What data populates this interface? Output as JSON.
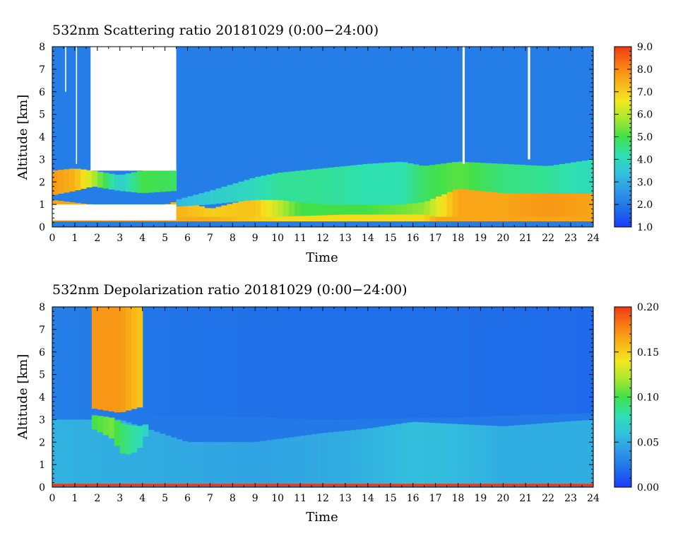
{
  "colors": {
    "scale": [
      "#1a3cff",
      "#1f6fe8",
      "#2f98e6",
      "#33c3dc",
      "#2ee0b0",
      "#42e048",
      "#a8e830",
      "#f4e81e",
      "#f8b418",
      "#f87a14",
      "#ee3a14"
    ],
    "missing": "#ffffff"
  },
  "chart_data": [
    {
      "type": "heatmap",
      "title": "532nm Scattering ratio  20181029 (0:00−24:00)",
      "xlabel": "Time",
      "ylabel": "Altitude [km]",
      "xlim": [
        0,
        24
      ],
      "ylim": [
        0,
        8
      ],
      "xticks": [
        "0",
        "1",
        "2",
        "3",
        "4",
        "5",
        "6",
        "7",
        "8",
        "9",
        "10",
        "11",
        "12",
        "13",
        "14",
        "15",
        "16",
        "17",
        "18",
        "19",
        "20",
        "21",
        "22",
        "23",
        "24"
      ],
      "yticks": [
        "0",
        "1",
        "2",
        "3",
        "4",
        "5",
        "6",
        "7",
        "8"
      ],
      "colorbar": {
        "range": [
          1.0,
          9.0
        ],
        "ticks": [
          "1.0",
          "2.0",
          "3.0",
          "4.0",
          "5.0",
          "6.0",
          "7.0",
          "8.0",
          "9.0"
        ]
      },
      "background_value": 2.1,
      "layers": [
        {
          "name": "boundary-layer",
          "x": [
            0,
            1.7,
            3.5,
            5.7,
            7,
            9,
            11,
            14,
            16.5,
            18,
            20,
            22,
            24
          ],
          "bottom": [
            0.25,
            0.25,
            0.25,
            0.25,
            0.25,
            0.25,
            0.25,
            0.25,
            0.25,
            0.25,
            0.25,
            0.25,
            0.25
          ],
          "top": [
            1.2,
            1.0,
            0.5,
            1.2,
            0.8,
            1.3,
            1.3,
            1.3,
            1.3,
            1.9,
            1.8,
            1.5,
            1.5
          ],
          "value": [
            7.6,
            7.6,
            7.4,
            7.4,
            7.0,
            7.2,
            5.0,
            5.0,
            5.6,
            7.6,
            7.6,
            7.8,
            7.6
          ]
        },
        {
          "name": "surface-layer",
          "x": [
            0,
            7,
            10,
            13,
            16.5,
            17,
            24
          ],
          "bottom": [
            0.25,
            0.25,
            0.25,
            0.25,
            0.25,
            0.25,
            0.25
          ],
          "top": [
            0.45,
            0.45,
            0.45,
            0.55,
            0.55,
            0.45,
            0.45
          ],
          "value": [
            7.5,
            7.5,
            6.8,
            6.8,
            6.8,
            7.6,
            7.6
          ]
        },
        {
          "name": "aerosol-layer",
          "x": [
            5.5,
            7,
            9,
            10,
            12,
            14,
            15.5,
            16.5,
            18,
            20,
            22,
            24
          ],
          "bottom": [
            0.9,
            1.0,
            1.2,
            1.2,
            1.0,
            1.0,
            1.0,
            1.1,
            1.7,
            1.5,
            1.5,
            1.5
          ],
          "top": [
            1.2,
            1.6,
            2.2,
            2.4,
            2.6,
            2.8,
            2.9,
            2.7,
            2.9,
            2.8,
            2.7,
            3.0
          ],
          "value": [
            3.2,
            3.6,
            4.0,
            4.4,
            4.4,
            4.2,
            4.2,
            4.8,
            5.2,
            4.6,
            4.4,
            4.0
          ]
        },
        {
          "name": "early-cloud-layer",
          "x": [
            0,
            1,
            1.8,
            3,
            4,
            5.5
          ],
          "bottom": [
            1.4,
            1.6,
            1.8,
            1.6,
            1.5,
            1.6
          ],
          "top": [
            2.5,
            2.6,
            2.5,
            2.3,
            2.5,
            2.6
          ],
          "value": [
            7.8,
            7.4,
            6.0,
            3.6,
            5.0,
            4.8
          ]
        }
      ],
      "missing_regions": [
        {
          "x": [
            1.7,
            5.5
          ],
          "y": [
            2.5,
            8.0
          ]
        },
        {
          "x": [
            0.0,
            5.5
          ],
          "y": [
            0.3,
            1.0
          ]
        },
        {
          "x": [
            0.57,
            0.62
          ],
          "y": [
            6.0,
            8.0
          ]
        },
        {
          "x": [
            1.05,
            1.1
          ],
          "y": [
            2.8,
            8.0
          ]
        },
        {
          "x": [
            18.2,
            18.3
          ],
          "y": [
            2.8,
            8.0
          ]
        },
        {
          "x": [
            21.1,
            21.2
          ],
          "y": [
            3.0,
            8.0
          ]
        }
      ]
    },
    {
      "type": "heatmap",
      "title": "532nm Depolarization ratio  20181029 (0:00−24:00)",
      "xlabel": "Time",
      "ylabel": "Altitude [km]",
      "xlim": [
        0,
        24
      ],
      "ylim": [
        0,
        8
      ],
      "xticks": [
        "0",
        "1",
        "2",
        "3",
        "4",
        "5",
        "6",
        "7",
        "8",
        "9",
        "10",
        "11",
        "12",
        "13",
        "14",
        "15",
        "16",
        "17",
        "18",
        "19",
        "20",
        "21",
        "22",
        "23",
        "24"
      ],
      "yticks": [
        "0",
        "1",
        "2",
        "3",
        "4",
        "5",
        "6",
        "7",
        "8"
      ],
      "colorbar": {
        "range": [
          0.0,
          0.2
        ],
        "ticks": [
          "0.00",
          "0.05",
          "0.10",
          "0.15",
          "0.20"
        ]
      },
      "background_value": 0.025,
      "layers": [
        {
          "name": "free-troposphere",
          "x": [
            0,
            6,
            12,
            18,
            24
          ],
          "bottom": [
            3.0,
            3.2,
            3.0,
            3.1,
            3.3
          ],
          "top": [
            8.0,
            8.0,
            8.0,
            8.0,
            8.0
          ],
          "value": [
            0.028,
            0.022,
            0.02,
            0.02,
            0.018
          ]
        },
        {
          "name": "boundary-layer",
          "x": [
            0,
            3,
            6,
            9,
            12,
            14,
            16,
            18,
            20,
            24
          ],
          "bottom": [
            0.1,
            0.1,
            0.1,
            0.1,
            0.1,
            0.1,
            0.1,
            0.1,
            0.1,
            0.1
          ],
          "top": [
            3.0,
            3.0,
            2.0,
            2.0,
            2.4,
            2.6,
            2.9,
            2.8,
            2.7,
            3.0
          ],
          "value": [
            0.052,
            0.05,
            0.048,
            0.045,
            0.048,
            0.052,
            0.058,
            0.056,
            0.05,
            0.05
          ]
        },
        {
          "name": "surface-band",
          "x": [
            0,
            24
          ],
          "bottom": [
            0.05,
            0.05
          ],
          "top": [
            0.15,
            0.15
          ],
          "value": [
            0.2,
            0.2
          ]
        },
        {
          "name": "dust-layer",
          "x": [
            1.8,
            2.6,
            3.2,
            3.8,
            4.2
          ],
          "bottom": [
            2.6,
            2.2,
            1.4,
            1.6,
            2.4
          ],
          "top": [
            3.2,
            3.1,
            2.8,
            2.7,
            2.8
          ],
          "value": [
            0.1,
            0.11,
            0.09,
            0.08,
            0.07
          ]
        },
        {
          "name": "upper-cloud-noise",
          "x": [
            1.75,
            3,
            4.1
          ],
          "bottom": [
            3.5,
            3.3,
            3.6
          ],
          "top": [
            8.0,
            8.0,
            8.0
          ],
          "value": [
            0.17,
            0.17,
            0.15
          ]
        }
      ],
      "missing_regions": []
    }
  ]
}
